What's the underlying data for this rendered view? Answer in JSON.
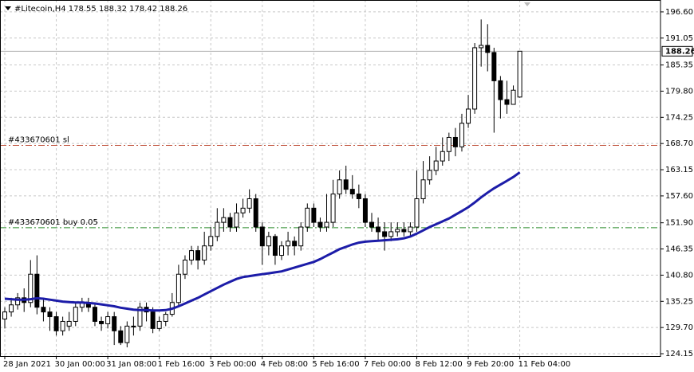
{
  "chart_data": {
    "type": "candlestick",
    "title": "#Litecoin,H4  178.55 188.32 178.42 188.26",
    "categories": [
      "28 Jan 2021",
      null,
      null,
      null,
      null,
      null,
      null,
      null,
      "30 Jan 00:00",
      null,
      null,
      null,
      null,
      null,
      null,
      null,
      "31 Jan 08:00",
      null,
      null,
      null,
      null,
      null,
      null,
      null,
      "1 Feb 16:00",
      null,
      null,
      null,
      null,
      null,
      null,
      null,
      "3 Feb 00:00",
      null,
      null,
      null,
      null,
      null,
      null,
      null,
      "4 Feb 08:00",
      null,
      null,
      null,
      null,
      null,
      null,
      null,
      "5 Feb 16:00",
      null,
      null,
      null,
      null,
      null,
      null,
      null,
      "7 Feb 00:00",
      null,
      null,
      null,
      null,
      null,
      null,
      null,
      "8 Feb 12:00",
      null,
      null,
      null,
      null,
      null,
      null,
      null,
      "9 Feb 20:00",
      null,
      null,
      null,
      null,
      null,
      null,
      null,
      "11 Feb 04:00"
    ],
    "open": [
      131.5,
      133,
      134.5,
      136,
      135,
      141,
      134,
      133,
      132,
      129,
      130,
      131,
      134,
      135,
      134,
      131,
      130.5,
      132,
      129,
      126.5,
      130,
      130,
      134,
      133,
      129.5,
      131,
      132.5,
      135,
      141,
      144,
      146,
      144,
      147,
      149,
      152,
      153,
      151,
      154,
      155,
      157,
      151,
      147,
      149,
      145,
      147,
      148,
      147,
      151,
      155,
      152,
      151,
      152,
      158,
      161,
      159,
      158,
      157,
      152,
      151,
      150,
      149,
      150,
      150.5,
      150,
      151,
      157,
      161,
      163,
      165,
      167,
      170,
      168,
      173,
      176,
      189,
      189.5,
      188,
      182,
      178,
      177,
      178.55
    ],
    "high": [
      134,
      136,
      137,
      138,
      144,
      145,
      136,
      134,
      133,
      132,
      133,
      135,
      136,
      136,
      135,
      132,
      133,
      133,
      130,
      131,
      132,
      135,
      135,
      134,
      132,
      133,
      137,
      143,
      145,
      147,
      147,
      150,
      151,
      155,
      155,
      154,
      156,
      157,
      159,
      158,
      152,
      150,
      149.5,
      148,
      150,
      149,
      152,
      156,
      156,
      153,
      158,
      161,
      163,
      164,
      162,
      160,
      158,
      154,
      153,
      152,
      152,
      152,
      152,
      152,
      163,
      165,
      166,
      168,
      170,
      171,
      172,
      175,
      179,
      190,
      195,
      194,
      189,
      183,
      182,
      181,
      188.32
    ],
    "low": [
      129.5,
      132,
      133.5,
      133,
      134,
      132.5,
      131,
      129,
      128,
      128,
      129,
      130,
      133,
      133,
      130,
      129,
      129.5,
      126,
      126,
      125.5,
      128,
      129,
      131,
      128.5,
      129,
      130,
      132,
      134,
      140,
      143,
      142,
      143,
      146,
      148,
      150,
      150,
      150,
      153,
      154,
      150,
      143,
      145,
      143,
      144,
      145,
      145,
      146,
      150,
      151,
      150,
      150,
      151,
      157,
      158,
      157,
      155,
      151,
      150,
      148,
      146,
      148,
      149,
      149,
      149,
      150,
      156,
      160,
      162,
      164,
      165,
      166,
      167,
      172,
      175,
      185,
      184,
      171,
      174,
      175,
      177,
      178.42
    ],
    "close": [
      133,
      134.5,
      136,
      135,
      141,
      134,
      133,
      132,
      129,
      131,
      131,
      134,
      135,
      134,
      131,
      130.5,
      132,
      129,
      126.5,
      130,
      130,
      134,
      133,
      129.5,
      131,
      132.5,
      135,
      141,
      144,
      146,
      144,
      147,
      149,
      152,
      153,
      151,
      154,
      155,
      157,
      151,
      147,
      149,
      145,
      147,
      148,
      147,
      151,
      155,
      152,
      151,
      152,
      158,
      161,
      159,
      158,
      157,
      152,
      151,
      150,
      149,
      150,
      150.5,
      150,
      151,
      157,
      161,
      163,
      165,
      167,
      170,
      168,
      173,
      176,
      189,
      189.5,
      188,
      182,
      178,
      177,
      180,
      188.26
    ],
    "up_color": "#ffffff",
    "down_color": "#000000",
    "candle_edge": "#000000",
    "series": [
      {
        "color": "#1c1ca8",
        "values": [
          135.8,
          135.7,
          135.6,
          135.6,
          135.7,
          135.9,
          135.8,
          135.6,
          135.4,
          135.2,
          135.1,
          135.0,
          135.0,
          134.9,
          134.8,
          134.6,
          134.4,
          134.2,
          133.9,
          133.7,
          133.5,
          133.4,
          133.4,
          133.3,
          133.3,
          133.4,
          133.7,
          134.2,
          134.8,
          135.4,
          136.0,
          136.7,
          137.4,
          138.1,
          138.8,
          139.4,
          140.0,
          140.4,
          140.6,
          140.8,
          141.0,
          141.2,
          141.4,
          141.6,
          142.0,
          142.4,
          142.8,
          143.2,
          143.6,
          144.2,
          144.9,
          145.6,
          146.3,
          146.8,
          147.3,
          147.7,
          147.9,
          148.0,
          148.1,
          148.2,
          148.3,
          148.4,
          148.6,
          149.0,
          149.6,
          150.3,
          151.0,
          151.6,
          152.2,
          152.8,
          153.6,
          154.4,
          155.2,
          156.2,
          157.3,
          158.3,
          159.2,
          160.0,
          160.8,
          161.6,
          162.6
        ]
      }
    ],
    "ylim": [
      123.65,
      199.12
    ],
    "yticks": [
      {
        "value": 196.6,
        "label": "196.60"
      },
      {
        "value": 191.05,
        "label": "191.05"
      },
      {
        "value": 185.35,
        "label": "185.35"
      },
      {
        "value": 179.8,
        "label": "179.80"
      },
      {
        "value": 174.25,
        "label": "174.25"
      },
      {
        "value": 168.7,
        "label": "168.70"
      },
      {
        "value": 163.15,
        "label": "163.15"
      },
      {
        "value": 157.6,
        "label": "157.60"
      },
      {
        "value": 151.9,
        "label": "151.90"
      },
      {
        "value": 146.35,
        "label": "146.35"
      },
      {
        "value": 140.8,
        "label": "140.80"
      },
      {
        "value": 135.25,
        "label": "135.25"
      },
      {
        "value": 129.7,
        "label": "129.70"
      },
      {
        "value": 124.15,
        "label": "124.15"
      }
    ],
    "last_price": 188.26,
    "levels": [
      {
        "label": "#433670601 sl",
        "value": 168.3,
        "color": "#c0503a"
      },
      {
        "label": "#433670601 buy 0.05",
        "value": 150.85,
        "color": "#2a8a2a"
      }
    ],
    "grid": true
  }
}
